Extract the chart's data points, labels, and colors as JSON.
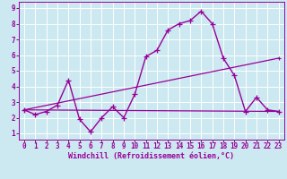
{
  "xlabel": "Windchill (Refroidissement éolien,°C)",
  "bg_color": "#cce8f0",
  "grid_color": "#ffffff",
  "line_color": "#990099",
  "xlim": [
    -0.5,
    23.5
  ],
  "ylim": [
    0.6,
    9.4
  ],
  "xticks": [
    0,
    1,
    2,
    3,
    4,
    5,
    6,
    7,
    8,
    9,
    10,
    11,
    12,
    13,
    14,
    15,
    16,
    17,
    18,
    19,
    20,
    21,
    22,
    23
  ],
  "yticks": [
    1,
    2,
    3,
    4,
    5,
    6,
    7,
    8,
    9
  ],
  "series1_x": [
    0,
    1,
    2,
    3,
    4,
    5,
    6,
    7,
    8,
    9,
    10,
    11,
    12,
    13,
    14,
    15,
    16,
    17,
    18,
    19,
    20,
    21,
    22,
    23
  ],
  "series1_y": [
    2.5,
    2.2,
    2.4,
    2.8,
    4.4,
    1.9,
    1.1,
    2.0,
    2.7,
    2.0,
    3.5,
    5.9,
    6.3,
    7.6,
    8.0,
    8.2,
    8.8,
    8.0,
    5.8,
    4.7,
    2.4,
    3.3,
    2.5,
    2.4
  ],
  "series2_x": [
    0,
    23
  ],
  "series2_y": [
    2.5,
    5.8
  ],
  "series3_x": [
    0,
    23
  ],
  "series3_y": [
    2.5,
    2.4
  ]
}
